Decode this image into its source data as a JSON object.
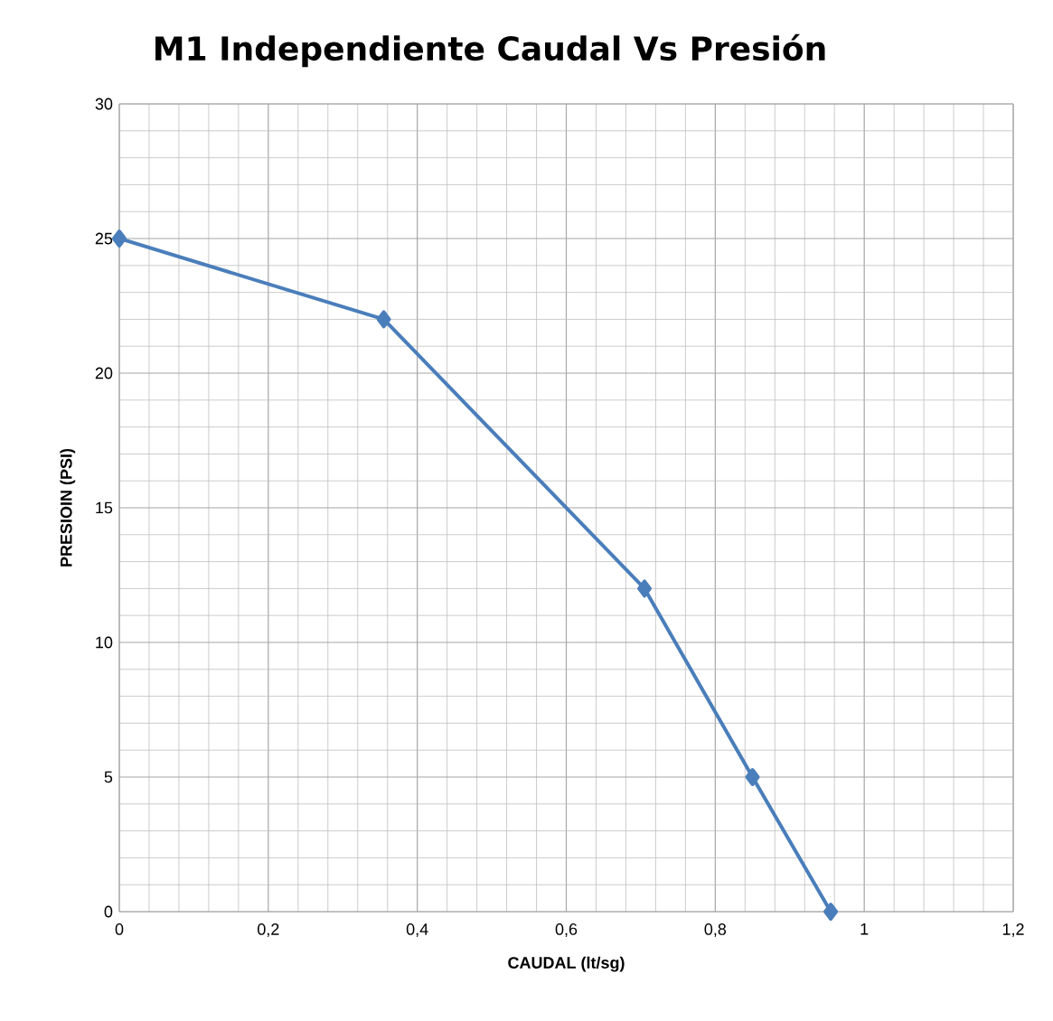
{
  "chart_data": {
    "type": "line",
    "title": "M1 Independiente Caudal Vs Presión",
    "xlabel": "CAUDAL (lt/sg)",
    "ylabel": "PRESIOIN (PSI)",
    "x": [
      0,
      0.355,
      0.705,
      0.85,
      0.955
    ],
    "series": [
      {
        "color": "#4a7ebb",
        "values": [
          25,
          22,
          12,
          5,
          0
        ]
      }
    ],
    "xlim": [
      0,
      1.2
    ],
    "ylim": [
      0,
      30
    ],
    "xticks": [
      0,
      {
        "value": 0.2,
        "label": "0,2"
      },
      {
        "value": 0.4,
        "label": "0,4"
      },
      {
        "value": 0.6,
        "label": "0,6"
      },
      {
        "value": 0.8,
        "label": "0,8"
      },
      1,
      {
        "value": 1.2,
        "label": "1,2"
      }
    ],
    "yticks": [
      0,
      5,
      10,
      15,
      20,
      25,
      30
    ],
    "grid": true,
    "marker": "diamond",
    "line_style": "solid"
  }
}
